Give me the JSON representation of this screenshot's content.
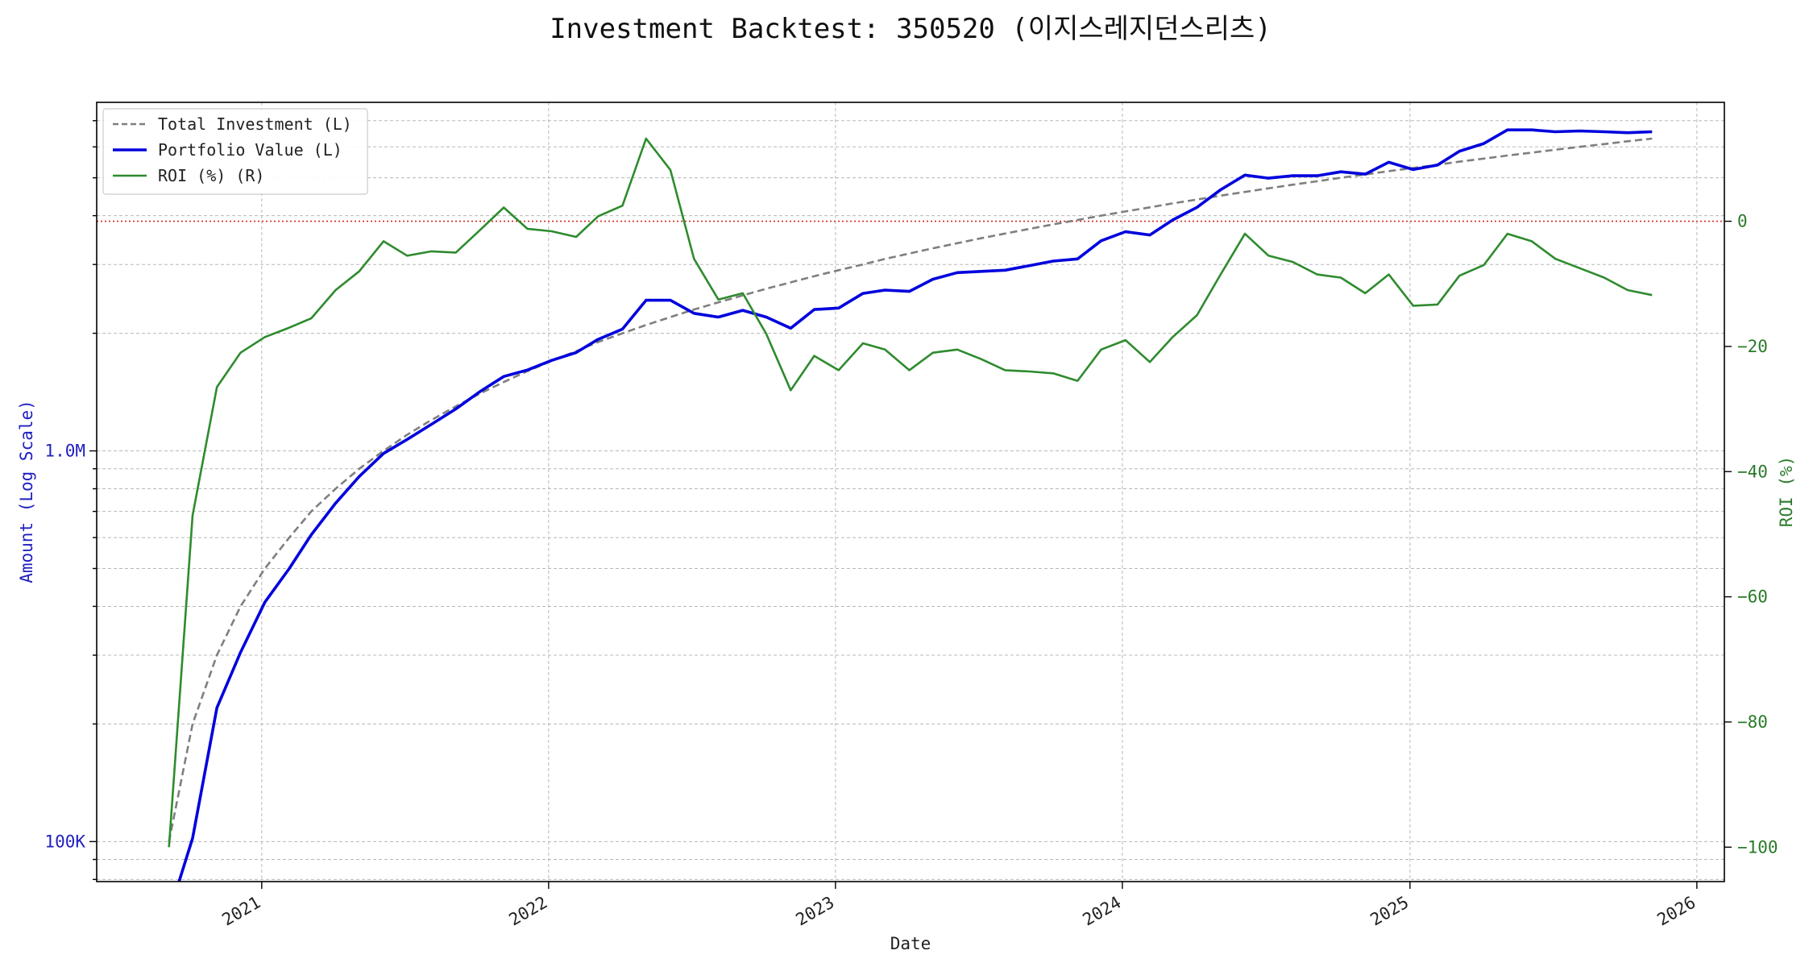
{
  "chart_data": {
    "type": "line",
    "title": "Investment Backtest: 350520 (이지스레지던스리츠)",
    "xlabel": "Date",
    "ylabel_left": "Amount (Log Scale)",
    "ylabel_right": "ROI (%)",
    "x_ticks": [
      "2021",
      "2022",
      "2023",
      "2024",
      "2025",
      "2026"
    ],
    "y_left_ticks": [
      "100K",
      "1.0M"
    ],
    "y_right_ticks": [
      "0",
      "−20",
      "−40",
      "−60",
      "−80",
      "−100"
    ],
    "y_left_scale": "log",
    "y_left_range": [
      79000,
      7800000
    ],
    "y_right_range": [
      -105.5,
      19
    ],
    "x_range": [
      "2020-06-05",
      "2026-02-05"
    ],
    "grid": true,
    "legend_position": "top-left",
    "reference_line": {
      "axis": "right",
      "value": 0,
      "color": "#d62728",
      "style": "dotted"
    },
    "colors": {
      "total_investment": "#7f7f7f",
      "portfolio_value": "#0000dd",
      "roi": "#2e8b2e",
      "left_axis": "#1f1fbf",
      "right_axis": "#2a7a2a"
    },
    "dates": [
      "2020-09",
      "2020-10",
      "2020-11",
      "2020-12",
      "2021-01",
      "2021-02",
      "2021-03",
      "2021-04",
      "2021-05",
      "2021-06",
      "2021-07",
      "2021-08",
      "2021-09",
      "2021-10",
      "2021-11",
      "2021-12",
      "2022-01",
      "2022-02",
      "2022-03",
      "2022-04",
      "2022-05",
      "2022-06",
      "2022-07",
      "2022-08",
      "2022-09",
      "2022-10",
      "2022-11",
      "2022-12",
      "2023-01",
      "2023-02",
      "2023-03",
      "2023-04",
      "2023-05",
      "2023-06",
      "2023-07",
      "2023-08",
      "2023-09",
      "2023-10",
      "2023-11",
      "2023-12",
      "2024-01",
      "2024-02",
      "2024-03",
      "2024-04",
      "2024-05",
      "2024-06",
      "2024-07",
      "2024-08",
      "2024-09",
      "2024-10",
      "2024-11",
      "2024-12",
      "2025-01",
      "2025-02",
      "2025-03",
      "2025-04",
      "2025-05",
      "2025-06",
      "2025-07",
      "2025-08",
      "2025-09",
      "2025-10",
      "2025-11"
    ],
    "series": [
      {
        "name": "Total Investment (L)",
        "axis": "left",
        "values": [
          100000,
          200000,
          300000,
          400000,
          500000,
          600000,
          700000,
          800000,
          900000,
          1000000,
          1100000,
          1200000,
          1300000,
          1400000,
          1500000,
          1600000,
          1700000,
          1800000,
          1900000,
          2000000,
          2100000,
          2200000,
          2300000,
          2400000,
          2500000,
          2600000,
          2700000,
          2800000,
          2900000,
          3000000,
          3100000,
          3200000,
          3300000,
          3400000,
          3500000,
          3600000,
          3700000,
          3800000,
          3900000,
          4000000,
          4100000,
          4200000,
          4300000,
          4400000,
          4500000,
          4600000,
          4700000,
          4800000,
          4900000,
          5000000,
          5100000,
          5200000,
          5300000,
          5400000,
          5500000,
          5600000,
          5700000,
          5800000,
          5900000,
          6000000,
          6100000,
          6200000,
          6300000
        ]
      },
      {
        "name": "Portfolio Value (L)",
        "axis": "left",
        "values": [
          50000,
          102000,
          220000,
          305000,
          410000,
          500000,
          610000,
          735000,
          860000,
          985000,
          1070000,
          1170000,
          1280000,
          1415000,
          1550000,
          1610000,
          1705000,
          1785000,
          1930000,
          2050000,
          2430000,
          2430000,
          2250000,
          2200000,
          2290000,
          2200000,
          2060000,
          2300000,
          2320000,
          2530000,
          2580000,
          2560000,
          2750000,
          2860000,
          2880000,
          2900000,
          2980000,
          3060000,
          3100000,
          3450000,
          3640000,
          3570000,
          3900000,
          4200000,
          4660000,
          5080000,
          4990000,
          5060000,
          5060000,
          5180000,
          5110000,
          5480000,
          5250000,
          5390000,
          5850000,
          6120000,
          6630000,
          6630000,
          6560000,
          6590000,
          6560000,
          6520000,
          6560000
        ]
      },
      {
        "name": "ROI (%) (R)",
        "axis": "right",
        "values": [
          -100,
          -47,
          -26.5,
          -21,
          -18.5,
          -17,
          -15.5,
          -11,
          -8,
          -3.2,
          -5.5,
          -4.8,
          -5,
          -1.5,
          2.2,
          -1.2,
          -1.6,
          -2.5,
          0.8,
          2.5,
          13.2,
          8.2,
          -6,
          -12.5,
          -11.5,
          -18,
          -27,
          -21.5,
          -23.8,
          -19.5,
          -20.5,
          -23.8,
          -21,
          -20.5,
          -22,
          -23.8,
          -24,
          -24.3,
          -25.5,
          -20.5,
          -19,
          -22.5,
          -18.5,
          -15,
          -8.5,
          -2,
          -5.5,
          -6.5,
          -8.5,
          -9,
          -11.5,
          -8.5,
          -13.5,
          -13.3,
          -8.7,
          -7,
          -2,
          -3.2,
          -6,
          -7.5,
          -9,
          -11,
          -11.8
        ]
      }
    ]
  }
}
